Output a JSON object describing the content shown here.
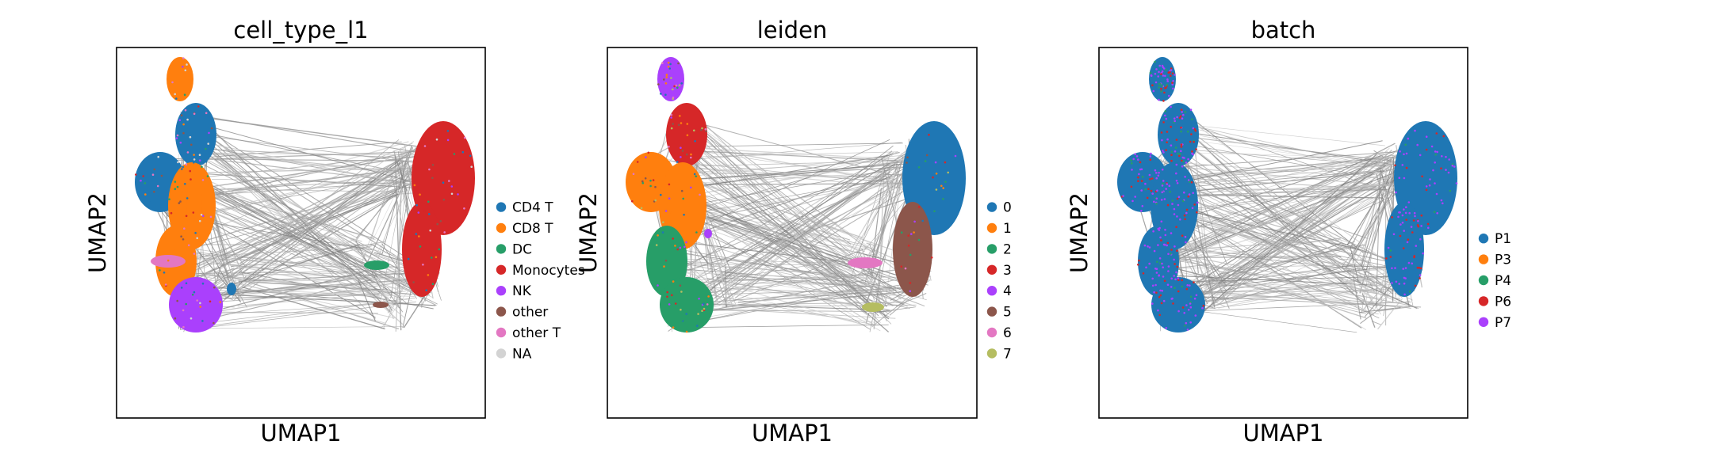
{
  "chart_data": [
    {
      "type": "scatter",
      "title": "cell_type_l1",
      "xlabel": "UMAP1",
      "ylabel": "UMAP2",
      "legend": {
        "placement": "right",
        "entries": [
          {
            "label": "CD4 T",
            "color": "#1f77b4"
          },
          {
            "label": "CD8 T",
            "color": "#ff7f0e"
          },
          {
            "label": "DC",
            "color": "#279e68"
          },
          {
            "label": "Monocytes",
            "color": "#d62728"
          },
          {
            "label": "NK",
            "color": "#aa40fc"
          },
          {
            "label": "other",
            "color": "#8c564b"
          },
          {
            "label": "other T",
            "color": "#e377c2"
          },
          {
            "label": "NA",
            "color": "#d3d3d3"
          }
        ]
      }
    },
    {
      "type": "scatter",
      "title": "leiden",
      "xlabel": "UMAP1",
      "ylabel": "UMAP2",
      "legend": {
        "placement": "right",
        "entries": [
          {
            "label": "0",
            "color": "#1f77b4"
          },
          {
            "label": "1",
            "color": "#ff7f0e"
          },
          {
            "label": "2",
            "color": "#279e68"
          },
          {
            "label": "3",
            "color": "#d62728"
          },
          {
            "label": "4",
            "color": "#aa40fc"
          },
          {
            "label": "5",
            "color": "#8c564b"
          },
          {
            "label": "6",
            "color": "#e377c2"
          },
          {
            "label": "7",
            "color": "#b5bd61"
          }
        ]
      }
    },
    {
      "type": "scatter",
      "title": "batch",
      "xlabel": "UMAP1",
      "ylabel": "UMAP2",
      "legend": {
        "placement": "right",
        "entries": [
          {
            "label": "P1",
            "color": "#1f77b4"
          },
          {
            "label": "P3",
            "color": "#ff7f0e"
          },
          {
            "label": "P4",
            "color": "#279e68"
          },
          {
            "label": "P6",
            "color": "#d62728"
          },
          {
            "label": "P7",
            "color": "#aa40fc"
          }
        ]
      }
    }
  ]
}
